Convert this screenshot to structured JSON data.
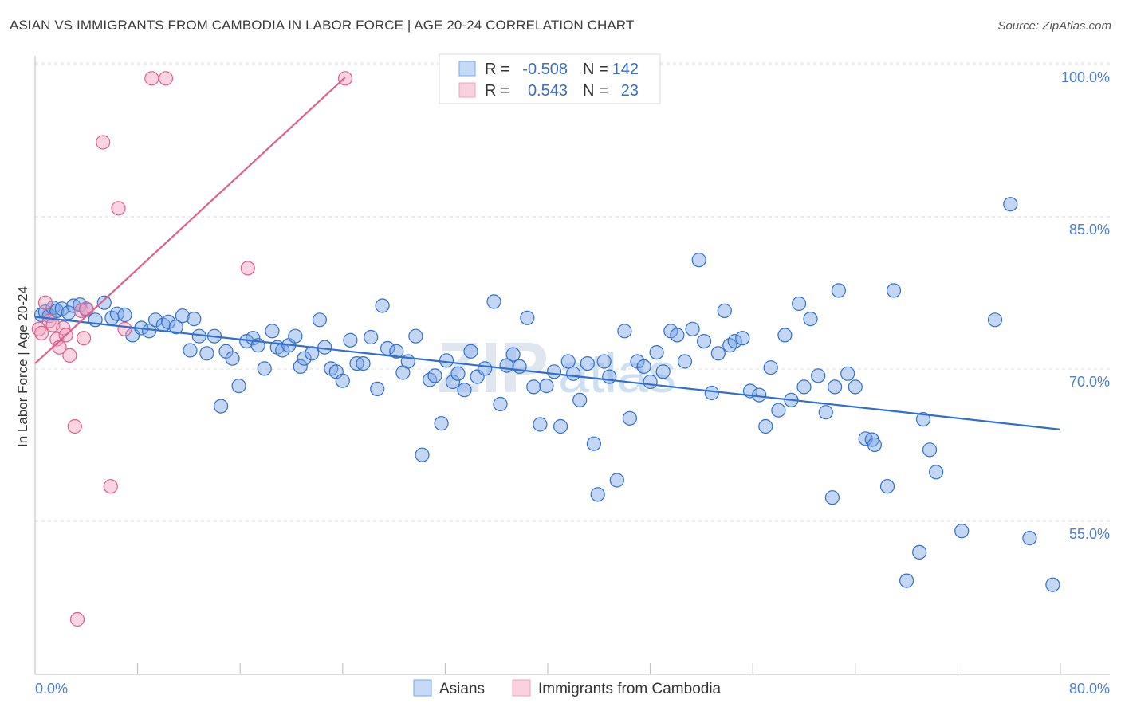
{
  "title": "ASIAN VS IMMIGRANTS FROM CAMBODIA IN LABOR FORCE | AGE 20-24 CORRELATION CHART",
  "source": "Source: ZipAtlas.com",
  "watermark": {
    "zip": "ZIP",
    "atlas": "atlas"
  },
  "colors": {
    "asians": "#7ba7e8",
    "asians_line": "#2f6fce",
    "cambodia": "#f4a0bb",
    "cambodia_line": "#e0608c",
    "tick": "#4a7fd0"
  },
  "legend": {
    "r_label": "R =",
    "n_label": "N =",
    "rows": [
      {
        "r": "-0.508",
        "n": "142"
      },
      {
        "r": "0.543",
        "n": "23"
      }
    ]
  },
  "chart_data": {
    "type": "scatter",
    "title": "ASIAN VS IMMIGRANTS FROM CAMBODIA IN LABOR FORCE | AGE 20-24 CORRELATION CHART",
    "xlabel": "",
    "ylabel": "In Labor Force | Age 20-24",
    "xlim": [
      0,
      80
    ],
    "ylim": [
      43,
      101.5
    ],
    "x_tick_labels": [
      "0.0%",
      "80.0%"
    ],
    "y_ticks": [
      55,
      70,
      85,
      100
    ],
    "y_tick_labels": [
      "55.0%",
      "70.0%",
      "85.0%",
      "100.0%"
    ],
    "grid": true,
    "legend_position": "top-center",
    "series": [
      {
        "name": "Asians",
        "trend": {
          "x": [
            0,
            80
          ],
          "y": [
            76.4,
            65.3
          ]
        },
        "points": [
          [
            0.5,
            76.6
          ],
          [
            0.8,
            76.9
          ],
          [
            1.1,
            76.5
          ],
          [
            1.4,
            77.3
          ],
          [
            1.7,
            77.0
          ],
          [
            2.1,
            77.2
          ],
          [
            2.6,
            76.8
          ],
          [
            3.0,
            77.5
          ],
          [
            3.5,
            77.6
          ],
          [
            4.0,
            77.1
          ],
          [
            4.7,
            76.1
          ],
          [
            5.4,
            77.8
          ],
          [
            6.0,
            76.3
          ],
          [
            6.4,
            76.7
          ],
          [
            7.0,
            76.6
          ],
          [
            7.6,
            74.6
          ],
          [
            8.3,
            75.3
          ],
          [
            8.9,
            75.0
          ],
          [
            9.4,
            76.1
          ],
          [
            10.0,
            75.6
          ],
          [
            10.4,
            75.9
          ],
          [
            11.0,
            75.4
          ],
          [
            11.5,
            76.5
          ],
          [
            12.1,
            73.1
          ],
          [
            12.4,
            76.2
          ],
          [
            12.8,
            74.5
          ],
          [
            13.4,
            72.8
          ],
          [
            14.0,
            74.5
          ],
          [
            14.5,
            67.6
          ],
          [
            14.9,
            73.0
          ],
          [
            15.4,
            72.3
          ],
          [
            15.9,
            69.6
          ],
          [
            16.5,
            74.0
          ],
          [
            17.0,
            74.3
          ],
          [
            17.4,
            73.6
          ],
          [
            17.9,
            71.3
          ],
          [
            18.5,
            75.0
          ],
          [
            18.9,
            73.4
          ],
          [
            19.3,
            73.1
          ],
          [
            19.8,
            73.6
          ],
          [
            20.3,
            74.5
          ],
          [
            20.7,
            71.5
          ],
          [
            21.0,
            72.3
          ],
          [
            21.6,
            72.8
          ],
          [
            22.2,
            76.1
          ],
          [
            22.6,
            73.4
          ],
          [
            23.1,
            71.3
          ],
          [
            23.5,
            71.0
          ],
          [
            24.0,
            70.1
          ],
          [
            24.6,
            74.1
          ],
          [
            25.1,
            71.8
          ],
          [
            25.6,
            71.8
          ],
          [
            26.2,
            74.4
          ],
          [
            26.7,
            69.3
          ],
          [
            27.1,
            77.5
          ],
          [
            27.5,
            73.3
          ],
          [
            28.2,
            73.0
          ],
          [
            28.7,
            70.9
          ],
          [
            29.1,
            72.0
          ],
          [
            29.7,
            74.5
          ],
          [
            30.2,
            62.8
          ],
          [
            30.8,
            70.2
          ],
          [
            31.2,
            70.6
          ],
          [
            31.7,
            65.9
          ],
          [
            32.1,
            72.1
          ],
          [
            32.6,
            70.0
          ],
          [
            33.0,
            70.8
          ],
          [
            33.5,
            69.2
          ],
          [
            34.0,
            73.0
          ],
          [
            34.5,
            70.5
          ],
          [
            35.1,
            71.3
          ],
          [
            35.8,
            77.9
          ],
          [
            36.3,
            67.8
          ],
          [
            36.8,
            71.6
          ],
          [
            37.3,
            72.7
          ],
          [
            37.8,
            71.5
          ],
          [
            38.4,
            76.3
          ],
          [
            38.9,
            69.5
          ],
          [
            39.4,
            65.8
          ],
          [
            39.9,
            69.6
          ],
          [
            40.5,
            71.0
          ],
          [
            41.0,
            65.6
          ],
          [
            41.6,
            72.0
          ],
          [
            42.0,
            70.8
          ],
          [
            42.5,
            68.2
          ],
          [
            43.1,
            71.8
          ],
          [
            43.6,
            63.9
          ],
          [
            43.9,
            58.9
          ],
          [
            44.4,
            72.0
          ],
          [
            44.8,
            70.5
          ],
          [
            45.4,
            60.3
          ],
          [
            46.0,
            75.0
          ],
          [
            46.4,
            66.4
          ],
          [
            47.0,
            72.0
          ],
          [
            47.5,
            71.5
          ],
          [
            48.0,
            70.0
          ],
          [
            48.5,
            72.9
          ],
          [
            49.0,
            71.0
          ],
          [
            49.6,
            75.0
          ],
          [
            50.1,
            74.6
          ],
          [
            50.7,
            72.0
          ],
          [
            51.3,
            75.2
          ],
          [
            51.8,
            82.0
          ],
          [
            52.2,
            74.0
          ],
          [
            52.8,
            68.9
          ],
          [
            53.3,
            72.8
          ],
          [
            53.8,
            77.0
          ],
          [
            54.2,
            73.6
          ],
          [
            54.6,
            74.0
          ],
          [
            55.2,
            74.3
          ],
          [
            55.8,
            69.1
          ],
          [
            56.5,
            68.7
          ],
          [
            57.0,
            65.6
          ],
          [
            57.4,
            71.4
          ],
          [
            58.0,
            67.2
          ],
          [
            58.5,
            74.6
          ],
          [
            59.0,
            68.2
          ],
          [
            59.6,
            77.7
          ],
          [
            60.0,
            69.5
          ],
          [
            60.5,
            76.2
          ],
          [
            61.1,
            70.6
          ],
          [
            61.7,
            67.0
          ],
          [
            62.2,
            58.6
          ],
          [
            62.4,
            69.5
          ],
          [
            62.7,
            79.0
          ],
          [
            63.4,
            70.8
          ],
          [
            64.0,
            69.5
          ],
          [
            64.8,
            64.4
          ],
          [
            65.3,
            64.3
          ],
          [
            65.5,
            63.8
          ],
          [
            66.5,
            59.7
          ],
          [
            67.0,
            79.0
          ],
          [
            68.0,
            50.4
          ],
          [
            69.0,
            53.2
          ],
          [
            69.3,
            66.3
          ],
          [
            69.8,
            63.3
          ],
          [
            70.3,
            61.1
          ],
          [
            72.3,
            55.3
          ],
          [
            74.9,
            76.1
          ],
          [
            76.1,
            87.5
          ],
          [
            77.6,
            54.6
          ],
          [
            79.4,
            50.0
          ]
        ]
      },
      {
        "name": "Immigrants from Cambodia",
        "trend": {
          "x": [
            0,
            24.2
          ],
          "y": [
            71.8,
            100.0
          ]
        },
        "points": [
          [
            0.3,
            75.2
          ],
          [
            0.5,
            74.8
          ],
          [
            0.8,
            77.8
          ],
          [
            1.1,
            76.0
          ],
          [
            1.4,
            75.6
          ],
          [
            1.7,
            74.2
          ],
          [
            1.9,
            73.4
          ],
          [
            2.2,
            75.3
          ],
          [
            2.4,
            74.6
          ],
          [
            2.7,
            72.6
          ],
          [
            3.1,
            65.6
          ],
          [
            3.3,
            46.6
          ],
          [
            3.6,
            77.0
          ],
          [
            3.8,
            74.3
          ],
          [
            4.0,
            77.2
          ],
          [
            5.3,
            93.6
          ],
          [
            5.9,
            59.7
          ],
          [
            6.5,
            87.1
          ],
          [
            7.0,
            75.2
          ],
          [
            9.1,
            99.9
          ],
          [
            10.2,
            99.9
          ],
          [
            16.6,
            81.2
          ],
          [
            24.2,
            99.9
          ]
        ]
      }
    ]
  },
  "bottom_legend": [
    {
      "label": "Asians"
    },
    {
      "label": "Immigrants from Cambodia"
    }
  ]
}
